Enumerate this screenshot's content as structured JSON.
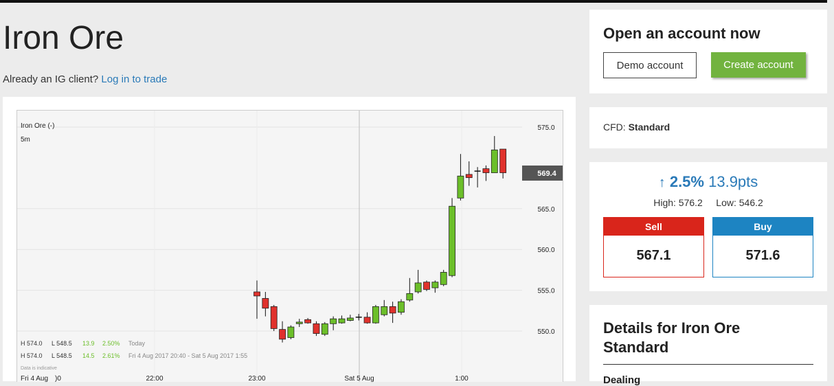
{
  "page": {
    "title": "Iron Ore",
    "login_prompt": "Already an IG client?",
    "login_link": "Log in to trade"
  },
  "chart_data": {
    "type": "candlestick",
    "instrument": "Iron Ore (-)",
    "interval": "5m",
    "current_price": "569.4",
    "y_ticks": [
      "575.0",
      "565.0",
      "560.0",
      "555.0",
      "550.0"
    ],
    "ylim": [
      547.5,
      577
    ],
    "x_ticks": [
      "Fri 4 Aug",
      ")0",
      "22:00",
      "23:00",
      "Sat 5 Aug",
      "1:00"
    ],
    "stats": [
      {
        "high": "H 574.0",
        "low": "L 548.5",
        "change": "13.9",
        "pct": "2.50%",
        "period": "Today"
      },
      {
        "high": "H 574.0",
        "low": "L 548.5",
        "change": "14.5",
        "pct": "2.61%",
        "period": "Fri 4 Aug 2017 20:40 - Sat 5 Aug 2017 1:55"
      }
    ],
    "footnote": "Data is indicative",
    "colors": {
      "up": "#6cbf2a",
      "down": "#e0322d"
    },
    "candles": [
      {
        "o": 554.8,
        "c": 554.3,
        "h": 556.2,
        "l": 551.5
      },
      {
        "o": 554.0,
        "c": 552.8,
        "h": 554.8,
        "l": 551.8
      },
      {
        "o": 553.0,
        "c": 550.3,
        "h": 553.2,
        "l": 550.0
      },
      {
        "o": 550.2,
        "c": 549.0,
        "h": 551.2,
        "l": 548.6
      },
      {
        "o": 549.2,
        "c": 550.5,
        "h": 550.7,
        "l": 549.0
      },
      {
        "o": 550.9,
        "c": 551.1,
        "h": 551.5,
        "l": 550.5
      },
      {
        "o": 551.4,
        "c": 551.0,
        "h": 551.6,
        "l": 550.9
      },
      {
        "o": 550.9,
        "c": 549.7,
        "h": 551.2,
        "l": 549.4
      },
      {
        "o": 549.6,
        "c": 550.9,
        "h": 551.1,
        "l": 549.4
      },
      {
        "o": 550.9,
        "c": 551.5,
        "h": 551.8,
        "l": 550.1
      },
      {
        "o": 551.0,
        "c": 551.5,
        "h": 551.9,
        "l": 550.9
      },
      {
        "o": 551.3,
        "c": 551.6,
        "h": 552.0,
        "l": 551.2
      },
      {
        "o": 551.6,
        "c": 551.7,
        "h": 552.1,
        "l": 551.3
      },
      {
        "o": 551.7,
        "c": 551.0,
        "h": 552.3,
        "l": 550.9
      },
      {
        "o": 551.0,
        "c": 553.0,
        "h": 553.2,
        "l": 550.9
      },
      {
        "o": 552.0,
        "c": 553.0,
        "h": 553.8,
        "l": 551.8
      },
      {
        "o": 553.0,
        "c": 552.2,
        "h": 553.6,
        "l": 551.0
      },
      {
        "o": 552.3,
        "c": 553.6,
        "h": 553.9,
        "l": 552.0
      },
      {
        "o": 553.8,
        "c": 554.6,
        "h": 556.5,
        "l": 553.6
      },
      {
        "o": 554.8,
        "c": 555.9,
        "h": 557.5,
        "l": 554.6
      },
      {
        "o": 556.0,
        "c": 555.1,
        "h": 556.2,
        "l": 554.9
      },
      {
        "o": 555.3,
        "c": 556.0,
        "h": 556.2,
        "l": 554.7
      },
      {
        "o": 555.7,
        "c": 557.2,
        "h": 557.5,
        "l": 555.5
      },
      {
        "o": 556.8,
        "c": 565.3,
        "h": 566.3,
        "l": 556.6
      },
      {
        "o": 566.3,
        "c": 569.0,
        "h": 571.7,
        "l": 566.0
      },
      {
        "o": 569.2,
        "c": 568.8,
        "h": 570.8,
        "l": 567.8
      },
      {
        "o": 569.5,
        "c": 569.6,
        "h": 570.1,
        "l": 567.6
      },
      {
        "o": 569.9,
        "c": 569.4,
        "h": 570.3,
        "l": 568.4
      },
      {
        "o": 569.4,
        "c": 572.2,
        "h": 573.9,
        "l": 569.4
      },
      {
        "o": 572.3,
        "c": 569.4,
        "h": 572.3,
        "l": 568.7
      }
    ]
  },
  "open_account": {
    "title": "Open an account now",
    "demo_label": "Demo account",
    "create_label": "Create account"
  },
  "cfd": {
    "label": "CFD:",
    "value": "Standard"
  },
  "market": {
    "arrow": "↑",
    "change_pct": "2.5%",
    "change_pts": "13.9pts",
    "high": "High: 576.2",
    "low": "Low: 546.2",
    "sell_label": "Sell",
    "sell_value": "567.1",
    "buy_label": "Buy",
    "buy_value": "571.6",
    "color_accent": "#2a7ab8",
    "color_sell": "#d9251b",
    "color_buy": "#1d84c2"
  },
  "details": {
    "title": "Details for Iron Ore Standard",
    "section": "Dealing"
  }
}
